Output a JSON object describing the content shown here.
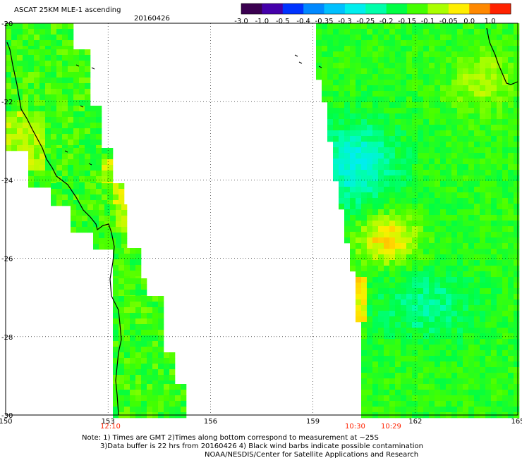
{
  "header": {
    "title": "ASCAT 25KM MLE-1 ascending",
    "date": "20160426"
  },
  "colorbar": {
    "tick_labels": [
      "-3.0",
      "-1.0",
      "-0.5",
      "-0.4",
      "-0.35",
      "-0.3",
      "-0.25",
      "-0.2",
      "-0.15",
      "-0.1",
      "-0.05",
      "0.0",
      "1.0"
    ],
    "colors": [
      "#3a0050",
      "#4400aa",
      "#0033ff",
      "#0088ff",
      "#00c0ff",
      "#00eeee",
      "#00ffaa",
      "#00ff44",
      "#44ff00",
      "#aaff00",
      "#ffee00",
      "#ff8800",
      "#ff2200"
    ]
  },
  "map": {
    "lon_range": [
      150,
      165
    ],
    "lat_range": [
      -30,
      -20
    ],
    "lon_ticks": [
      "150",
      "153",
      "156",
      "159",
      "162",
      "165"
    ],
    "lat_ticks": [
      "-20",
      "-22",
      "-24",
      "-26",
      "-28",
      "-30"
    ],
    "swath_times": [
      "12:10",
      "10:30",
      "10:29"
    ],
    "grid": true
  },
  "notes": {
    "line1": "Note: 1) Times are GMT 2)Times along bottom correspond to measurement at ~25S",
    "line2": "3)Data buffer is 22 hrs from 20160426 4) Black wind barbs indicate possible contamination",
    "line3": "NOAA/NESDIS/Center for Satellite Applications and Research"
  }
}
